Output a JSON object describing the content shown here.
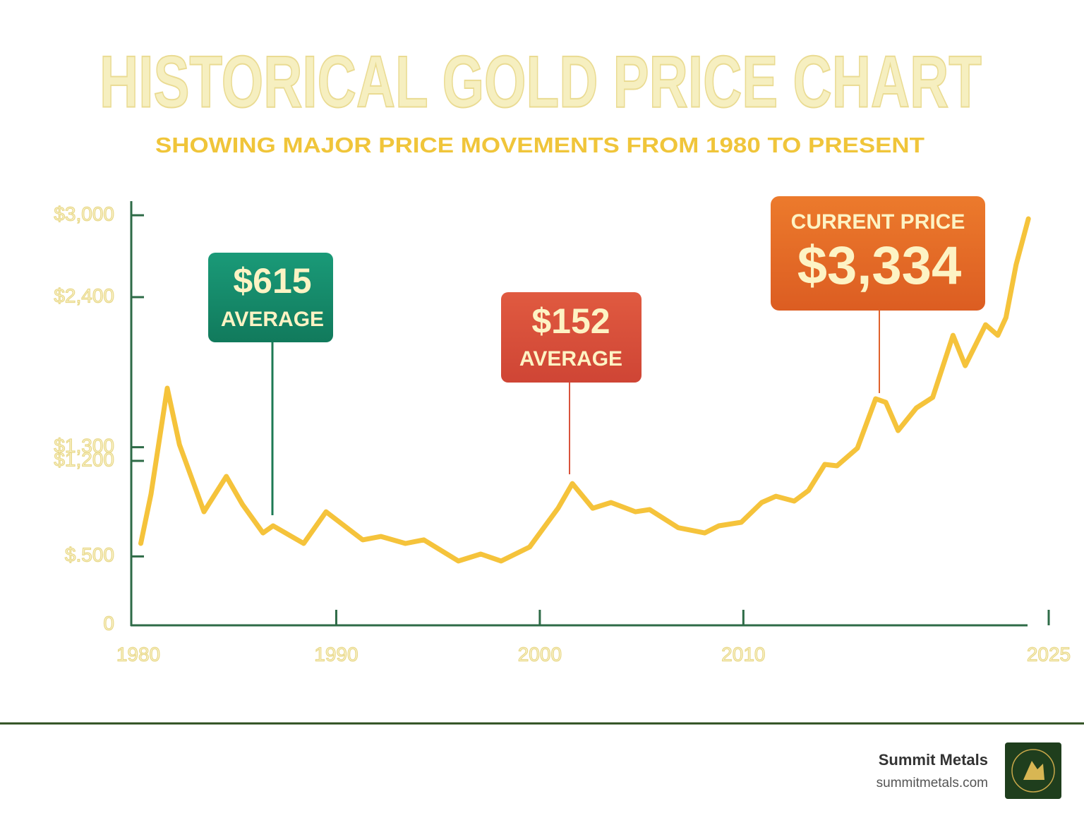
{
  "chart_data": {
    "type": "line",
    "title": "HISTORICAL GOLD PRICE CHART",
    "subtitle": "SHOWING MAJOR PRICE MOVEMENTS FROM 1980 TO PRESENT",
    "x": [
      1980.4,
      1980.9,
      1981.7,
      1982.3,
      1983.5,
      1984.6,
      1985.4,
      1986.4,
      1986.9,
      1988.4,
      1989.5,
      1991.3,
      1992.2,
      1993.4,
      1994.3,
      1996.0,
      1997.1,
      1998.1,
      1999.5,
      2000.9,
      2001.6,
      2002.6,
      2003.5,
      2004.7,
      2005.4,
      2006.8,
      2008.1,
      2008.8,
      2009.9,
      2010.9,
      2011.6,
      2012.5,
      2013.2,
      2014.0,
      2014.6,
      2015.6,
      2016.5,
      2017.0,
      2017.6,
      2018.5,
      2019.3,
      2020.3,
      2020.9,
      2021.9,
      2022.5,
      2022.9,
      2023.4,
      2024.0
    ],
    "series": [
      {
        "color": "#f5c33b",
        "values": [
          595,
          957,
          1733,
          1319,
          827,
          1086,
          879,
          672,
          724,
          595,
          827,
          621,
          646,
          595,
          621,
          466,
          517,
          466,
          569,
          853,
          1034,
          853,
          895,
          827,
          843,
          710,
          672,
          724,
          750,
          895,
          941,
          905,
          983,
          1174,
          1164,
          1293,
          1655,
          1629,
          1422,
          1588,
          1665,
          2120,
          1898,
          2198,
          2120,
          2250,
          2638,
          2974
        ]
      }
    ],
    "xlim": [
      1980,
      2025
    ],
    "xticks": [
      1980,
      1990,
      2000,
      2010,
      2025
    ],
    "ylim": [
      0,
      3000
    ],
    "yticks": [
      0,
      {
        "value": 500,
        "label": "$.500"
      },
      {
        "value": 1200,
        "label": "$1,200"
      },
      {
        "value": 2400,
        "label": "$2,400"
      },
      {
        "value": 1300,
        "label": "$1,300"
      },
      {
        "value": 3000,
        "label": "$3,000"
      }
    ],
    "annotations": [
      {
        "value": "$615",
        "label": "AVERAGE"
      },
      {
        "value": "$152",
        "label": "AVERAGE"
      },
      {
        "label": "CURRENT PRICE",
        "value": "$3,334"
      }
    ]
  },
  "footer": {
    "brand": "Summit Metals",
    "url": "summitmetals.com"
  }
}
